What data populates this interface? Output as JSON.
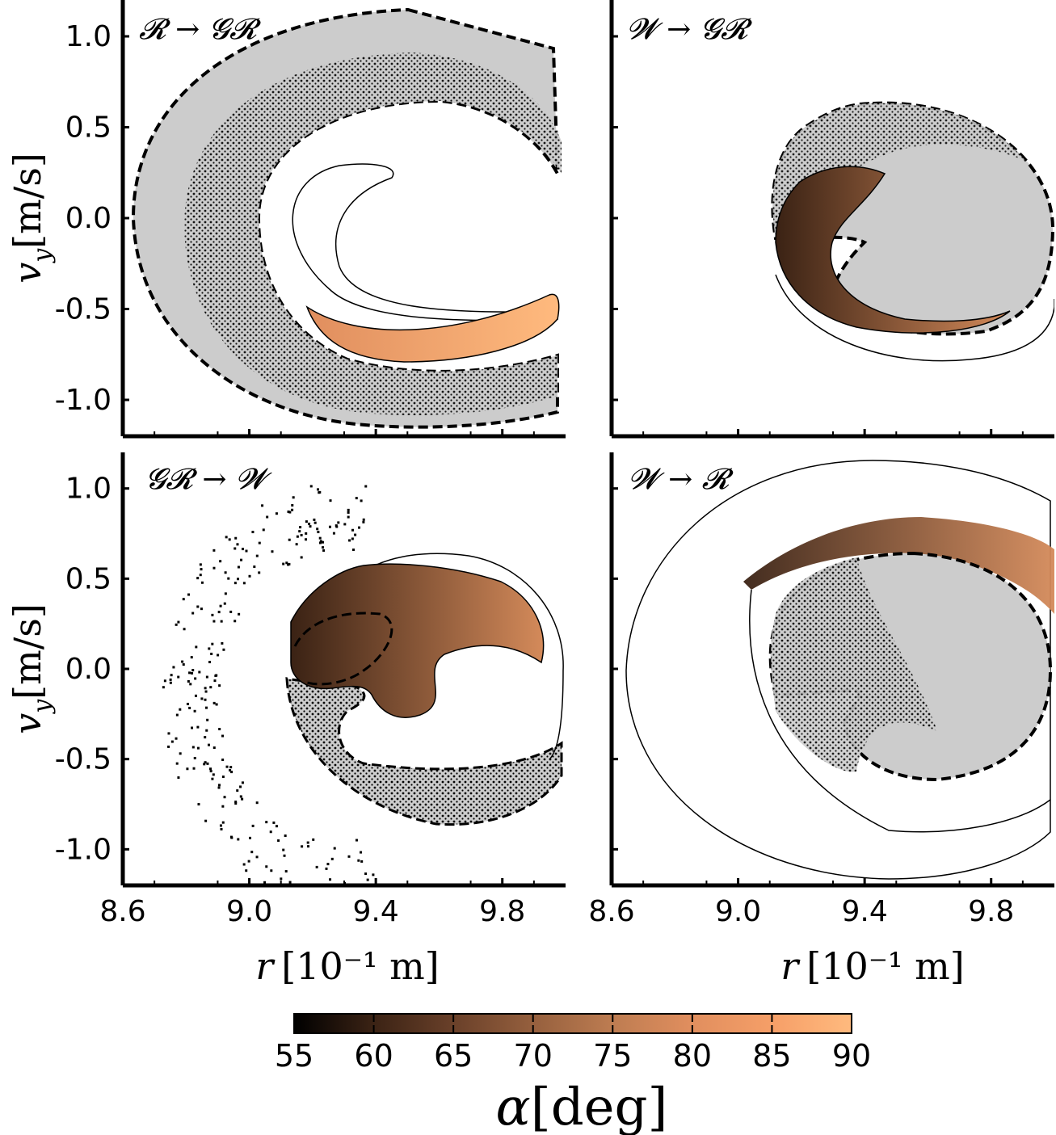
{
  "chart_data": {
    "type": "scatter",
    "x_axis": {
      "label_symbol": "r",
      "label_unit": "[10⁻¹ m]",
      "range": [
        8.6,
        10.0
      ],
      "ticks": [
        8.6,
        9.0,
        9.4,
        9.8
      ],
      "tick_labels": [
        "8.6",
        "9.0",
        "9.4",
        "9.8"
      ]
    },
    "y_axis": {
      "label_symbol": "v",
      "label_subscript": "y",
      "label_unit": "[m/s]",
      "range": [
        -1.2,
        1.2
      ],
      "ticks": [
        1.0,
        0.5,
        0.0,
        -0.5,
        -1.0
      ],
      "tick_labels": [
        "1.0",
        "0.5",
        "0.0",
        "-0.5",
        "-1.0"
      ]
    },
    "colorbar": {
      "label_symbol": "α",
      "label_unit": "[deg]",
      "range": [
        55,
        90
      ],
      "ticks": [
        55,
        60,
        65,
        70,
        75,
        80,
        85,
        90
      ],
      "tick_labels": [
        "55",
        "60",
        "65",
        "70",
        "75",
        "80",
        "85",
        "90"
      ],
      "colors": [
        "#000000",
        "#3a2214",
        "#6b412a",
        "#96603e",
        "#bd7c51",
        "#e08e5e",
        "#f69f68",
        "#ffba7e"
      ]
    },
    "panels": [
      {
        "label": "𝓡 → 𝓖𝓡",
        "region_gray": "#cccccc",
        "colored_region": {
          "r": [
            9.14,
            9.98
          ],
          "vy": [
            -0.78,
            -0.42
          ],
          "alpha_deg": 85
        }
      },
      {
        "label": "𝓦 → 𝓖𝓡",
        "region_gray": "#cccccc",
        "colored_region": {
          "r": [
            9.08,
            9.62
          ],
          "vy": [
            -0.65,
            0.28
          ],
          "alpha_deg": 72
        }
      },
      {
        "label": "𝓖𝓡 → 𝓦",
        "region_gray": "#cccccc",
        "colored_region": {
          "r": [
            9.1,
            9.98
          ],
          "vy": [
            -0.05,
            0.62
          ],
          "alpha_deg": 70
        }
      },
      {
        "label": "𝓦 → 𝓡",
        "region_gray": "#cccccc",
        "colored_region": {
          "r": [
            9.0,
            10.0
          ],
          "vy": [
            0.35,
            0.8
          ],
          "alpha_deg": 75
        }
      }
    ]
  }
}
